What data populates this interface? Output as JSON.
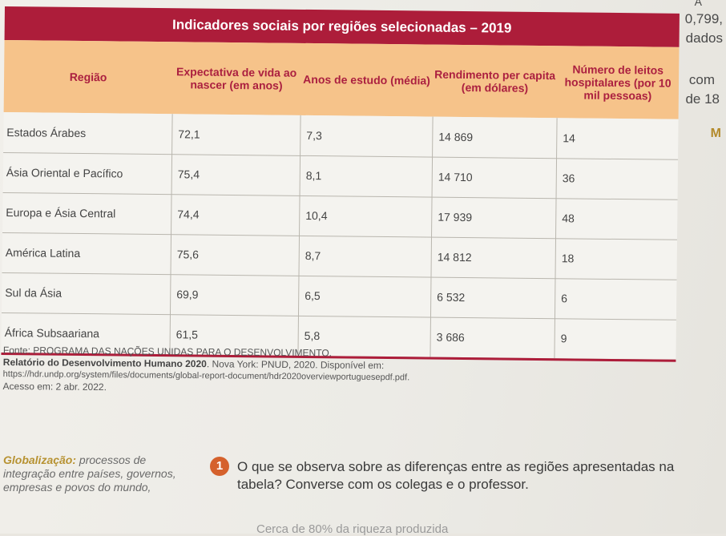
{
  "margin_text": [
    "A",
    "0,799,",
    "dados",
    "com",
    "de 18",
    "M"
  ],
  "table": {
    "title": "Indicadores sociais por regiões selecionadas – 2019",
    "headers": {
      "region": "Região",
      "life_expectancy": "Expectativa de vida ao nascer (em anos)",
      "schooling": "Anos de estudo (média)",
      "income": "Rendimento per capita (em dólares)",
      "beds": "Número de leitos hospitalares (por 10 mil pessoas)"
    },
    "rows": [
      {
        "region": "Estados Árabes",
        "life": "72,1",
        "school": "7,3",
        "income": "14 869",
        "beds": "14"
      },
      {
        "region": "Ásia Oriental e Pacífico",
        "life": "75,4",
        "school": "8,1",
        "income": "14 710",
        "beds": "36"
      },
      {
        "region": "Europa e Ásia Central",
        "life": "74,4",
        "school": "10,4",
        "income": "17 939",
        "beds": "48"
      },
      {
        "region": "América Latina",
        "life": "75,6",
        "school": "8,7",
        "income": "14 812",
        "beds": "18"
      },
      {
        "region": "Sul da Ásia",
        "life": "69,9",
        "school": "6,5",
        "income": "6 532",
        "beds": "6"
      },
      {
        "region": "África Subsaariana",
        "life": "61,5",
        "school": "5,8",
        "income": "3 686",
        "beds": "9"
      }
    ]
  },
  "source": {
    "line1": "Fonte: PROGRAMA DAS NAÇÕES UNIDAS PARA O DESENVOLVIMENTO.",
    "line2_bold": "Relatório do Desenvolvimento Humano 2020",
    "line2_rest": ". Nova York: PNUD, 2020. Disponível em:",
    "url": "https://hdr.undp.org/system/files/documents/global-report-document/hdr2020overviewportuguesepdf.pdf.",
    "access": "Acesso em: 2 abr. 2022."
  },
  "glossary": {
    "term": "Globalização:",
    "definition": "processos de integração entre países, governos, empresas e povos do mundo,"
  },
  "question": {
    "number": "1",
    "text": "O que se observa sobre as diferenças entre as regiões apresentadas na tabela? Converse com os colegas e o professor."
  },
  "bottom_fragment": "Cerca de 80% da riqueza produzida"
}
